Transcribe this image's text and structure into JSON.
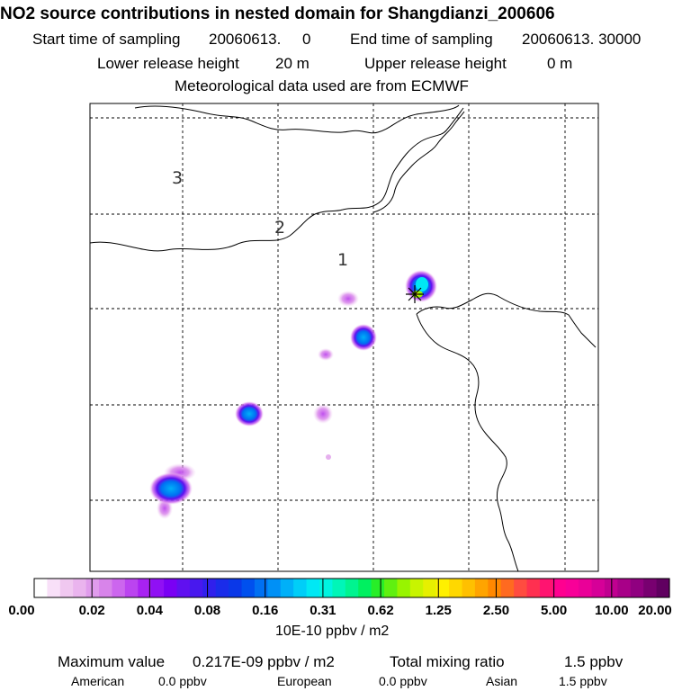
{
  "title": "NO2 source contributions in nested domain for Shangdianzi_200606",
  "header": {
    "start_label": "Start time of sampling",
    "start_value": "20060613.     0",
    "end_label": "End time of sampling",
    "end_value": "20060613. 30000",
    "lower_label": "Lower release height",
    "lower_value": "20 m",
    "upper_label": "Upper release height",
    "upper_value": "0 m",
    "met_line": "Meteorological data used are from ECMWF"
  },
  "map": {
    "ring_labels": [
      "3",
      "2",
      "1"
    ],
    "receptor_marker": "star-cross",
    "source_blobs": [
      {
        "name": "blob-ne-near-receptor",
        "intensity": "0.16-1.25"
      },
      {
        "name": "blob-center",
        "intensity": "0.08-0.16"
      },
      {
        "name": "blob-west",
        "intensity": "0.08-0.16"
      },
      {
        "name": "blob-southwest",
        "intensity": "0.08-0.16"
      },
      {
        "name": "blob-small-1",
        "intensity": "0.02"
      },
      {
        "name": "blob-small-2",
        "intensity": "0.02"
      },
      {
        "name": "blob-small-3",
        "intensity": "0.04"
      }
    ]
  },
  "colorbar": {
    "tick_labels": [
      "0.00",
      "0.02",
      "0.04",
      "0.08",
      "0.16",
      "0.31",
      "0.62",
      "1.25",
      "2.50",
      "5.00",
      "10.00",
      "20.00"
    ],
    "unit_label": "10E-10 ppbv / m2",
    "colors": [
      "#ffffff",
      "#f8e0f8",
      "#f0c8f0",
      "#eab4ee",
      "#e09cec",
      "#d884ea",
      "#cc66ee",
      "#bb44f0",
      "#a822f2",
      "#9010f4",
      "#7a00f4",
      "#6010f0",
      "#4818ee",
      "#3020ec",
      "#1a2cea",
      "#0a38e8",
      "#0050ee",
      "#0070f2",
      "#0090f6",
      "#00b0f8",
      "#00cef8",
      "#00e8f4",
      "#00f4e0",
      "#00f6b8",
      "#00f490",
      "#00f060",
      "#28ee28",
      "#60f010",
      "#98f400",
      "#c8f400",
      "#e6f000",
      "#fff000",
      "#ffd800",
      "#ffc000",
      "#ffa400",
      "#ff8800",
      "#ff6a20",
      "#ff4c40",
      "#ff3050",
      "#ff1470",
      "#ff0090",
      "#f80098",
      "#ea0098",
      "#d60098",
      "#c00090",
      "#a80088",
      "#900080",
      "#780070",
      "#600060"
    ]
  },
  "footer": {
    "max_label": "Maximum value",
    "max_value": "0.217E-09 ppbv / m2",
    "total_label": "Total mixing ratio",
    "total_value": "1.5 ppbv",
    "american_label": "American",
    "american_value": "0.0 ppbv",
    "european_label": "European",
    "european_value": "0.0 ppbv",
    "asian_label": "Asian",
    "asian_value": "1.5 ppbv"
  }
}
